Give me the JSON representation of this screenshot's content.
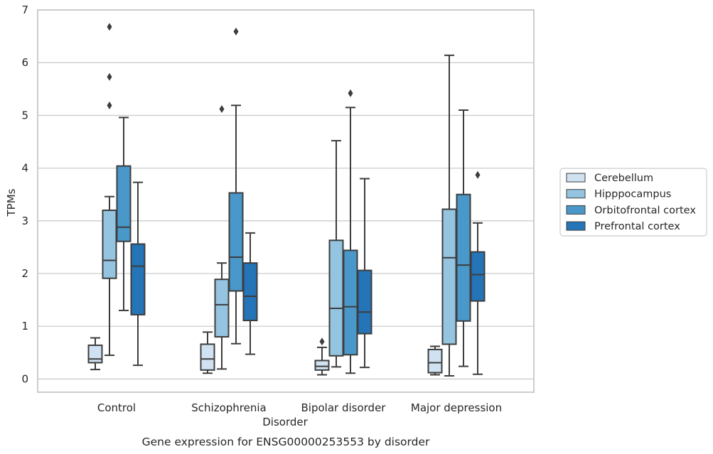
{
  "chart_data": {
    "type": "box",
    "title": "",
    "caption": "Gene expression for ENSG00000253553 by disorder",
    "xlabel": "Disorder",
    "ylabel": "TPMs",
    "ylim": [
      -0.25,
      7
    ],
    "yticks": [
      0,
      1,
      2,
      3,
      4,
      5,
      6,
      7
    ],
    "grid": "horizontal",
    "legend_position": "right",
    "categories": [
      "Control",
      "Schizophrenia",
      "Bipolar disorder",
      "Major depression"
    ],
    "series": [
      {
        "name": "Cerebellum",
        "color": "#d0e1f2",
        "boxes": [
          {
            "whisker_low": 0.18,
            "q1": 0.31,
            "median": 0.38,
            "q3": 0.64,
            "whisker_high": 0.78,
            "outliers": []
          },
          {
            "whisker_low": 0.11,
            "q1": 0.17,
            "median": 0.38,
            "q3": 0.66,
            "whisker_high": 0.89,
            "outliers": []
          },
          {
            "whisker_low": 0.08,
            "q1": 0.17,
            "median": 0.24,
            "q3": 0.35,
            "whisker_high": 0.6,
            "outliers": [
              0.71
            ]
          },
          {
            "whisker_low": 0.08,
            "q1": 0.12,
            "median": 0.31,
            "q3": 0.56,
            "whisker_high": 0.62,
            "outliers": []
          }
        ]
      },
      {
        "name": "Hipppocampus",
        "color": "#94c4df",
        "boxes": [
          {
            "whisker_low": 0.45,
            "q1": 1.91,
            "median": 2.25,
            "q3": 3.2,
            "whisker_high": 3.46,
            "outliers": [
              5.19,
              5.73,
              6.68
            ]
          },
          {
            "whisker_low": 0.19,
            "q1": 0.8,
            "median": 1.41,
            "q3": 1.89,
            "whisker_high": 2.2,
            "outliers": [
              5.12
            ]
          },
          {
            "whisker_low": 0.23,
            "q1": 0.44,
            "median": 1.34,
            "q3": 2.63,
            "whisker_high": 4.52,
            "outliers": []
          },
          {
            "whisker_low": 0.06,
            "q1": 0.66,
            "median": 2.3,
            "q3": 3.22,
            "whisker_high": 6.14,
            "outliers": []
          }
        ]
      },
      {
        "name": "Orbitofrontal cortex",
        "color": "#4a98c9",
        "boxes": [
          {
            "whisker_low": 1.3,
            "q1": 2.61,
            "median": 2.88,
            "q3": 4.04,
            "whisker_high": 4.96,
            "outliers": []
          },
          {
            "whisker_low": 0.67,
            "q1": 1.67,
            "median": 2.31,
            "q3": 3.53,
            "whisker_high": 5.19,
            "outliers": [
              6.59
            ]
          },
          {
            "whisker_low": 0.11,
            "q1": 0.46,
            "median": 1.37,
            "q3": 2.44,
            "whisker_high": 5.15,
            "outliers": [
              5.42
            ]
          },
          {
            "whisker_low": 0.24,
            "q1": 1.1,
            "median": 2.16,
            "q3": 3.5,
            "whisker_high": 5.1,
            "outliers": []
          }
        ]
      },
      {
        "name": "Prefrontal cortex",
        "color": "#2474b7",
        "boxes": [
          {
            "whisker_low": 0.26,
            "q1": 1.22,
            "median": 2.14,
            "q3": 2.56,
            "whisker_high": 3.73,
            "outliers": []
          },
          {
            "whisker_low": 0.47,
            "q1": 1.11,
            "median": 1.57,
            "q3": 2.2,
            "whisker_high": 2.77,
            "outliers": []
          },
          {
            "whisker_low": 0.22,
            "q1": 0.86,
            "median": 1.27,
            "q3": 2.06,
            "whisker_high": 3.8,
            "outliers": []
          },
          {
            "whisker_low": 0.09,
            "q1": 1.48,
            "median": 1.98,
            "q3": 2.41,
            "whisker_high": 2.96,
            "outliers": [
              3.87
            ]
          }
        ]
      }
    ]
  }
}
